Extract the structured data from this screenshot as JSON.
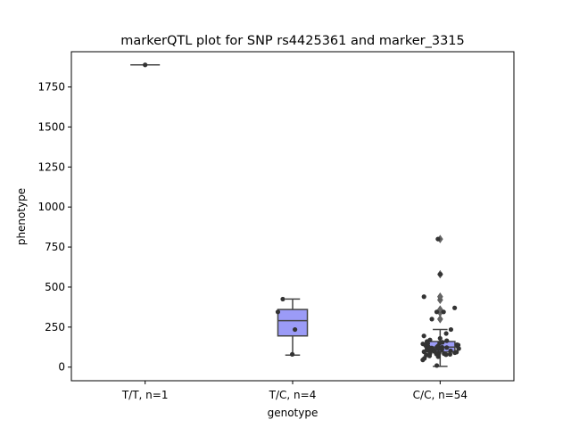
{
  "chart_data": {
    "type": "box",
    "title": "markerQTL plot for SNP rs4425361 and marker_3315",
    "xlabel": "genotype",
    "ylabel": "phenotype",
    "ylim": [
      -85,
      1970
    ],
    "yticks": [
      0,
      250,
      500,
      750,
      1000,
      1250,
      1500,
      1750
    ],
    "categories": [
      "T/T, n=1",
      "T/C, n=4",
      "C/C, n=54"
    ],
    "box_color": "#9b9bf7",
    "point_color": "#333333",
    "groups": [
      {
        "label": "T/T, n=1",
        "box": {
          "whisker_low": 1888,
          "q1": 1888,
          "median": 1888,
          "q3": 1888,
          "whisker_high": 1888
        },
        "outliers": [],
        "points": [
          1888
        ]
      },
      {
        "label": "T/C, n=4",
        "box": {
          "whisker_low": 75,
          "q1": 195,
          "median": 290,
          "q3": 360,
          "whisker_high": 425
        },
        "outliers": [],
        "points": [
          80,
          235,
          345,
          425
        ]
      },
      {
        "label": "C/C, n=54",
        "box": {
          "whisker_low": 5,
          "q1": 95,
          "median": 125,
          "q3": 160,
          "whisker_high": 235
        },
        "outliers": [
          300,
          340,
          360,
          420,
          440,
          580,
          800
        ],
        "points": [
          800,
          580,
          440,
          370,
          345,
          345,
          300,
          235,
          210,
          195,
          180,
          170,
          165,
          160,
          155,
          150,
          148,
          145,
          140,
          138,
          135,
          132,
          130,
          128,
          126,
          124,
          122,
          120,
          118,
          116,
          114,
          112,
          110,
          108,
          105,
          102,
          100,
          98,
          96,
          94,
          92,
          90,
          88,
          86,
          84,
          82,
          80,
          78,
          75,
          70,
          65,
          55,
          45,
          10
        ]
      }
    ]
  }
}
